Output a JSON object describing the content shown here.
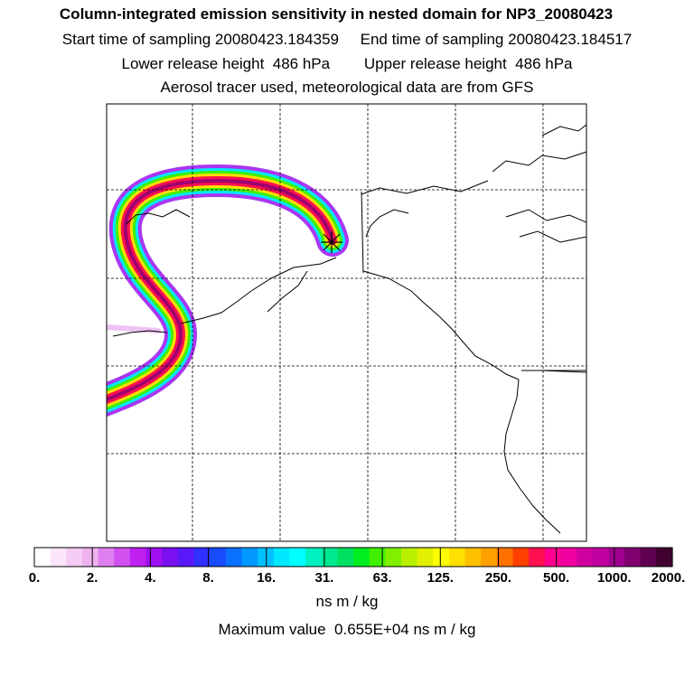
{
  "header": {
    "title": "Column-integrated emission sensitivity in nested domain for NP3_20080423",
    "start_label": "Start time of sampling 20080423.184359",
    "end_label": "End time of sampling 20080423.184517",
    "lower_label": "Lower release height  486 hPa",
    "upper_label": "Upper release height  486 hPa",
    "info": "Aerosol tracer used, meteorological data are from GFS"
  },
  "colorbar": {
    "colors": [
      "#ffffff",
      "#fbe6fb",
      "#f5ccf5",
      "#eeb2ee",
      "#e080f0",
      "#d050f0",
      "#c020f0",
      "#a010f0",
      "#7a10f0",
      "#5a18f8",
      "#3030ff",
      "#1a4cff",
      "#0a70ff",
      "#0098ff",
      "#00c0ff",
      "#00e8ff",
      "#00ffff",
      "#00f0c0",
      "#00e890",
      "#00e060",
      "#00ee20",
      "#40f000",
      "#80f000",
      "#b8f000",
      "#e0f000",
      "#ffff00",
      "#ffe000",
      "#ffc000",
      "#ffa000",
      "#ff7000",
      "#ff4000",
      "#ff1050",
      "#ff0090",
      "#f000a0",
      "#d000a0",
      "#c000a0",
      "#a00090",
      "#800070",
      "#600050",
      "#400030"
    ],
    "tick_labels": [
      "0.",
      "2.",
      "4.",
      "8.",
      "16.",
      "31.",
      "63.",
      "125.",
      "250.",
      "500.",
      "1000.",
      "2000."
    ],
    "units": "ns m / kg",
    "max_value": "Maximum value  0.655E+04 ns m / kg"
  },
  "map": {
    "release_marker": "asterisk-marker",
    "grid": true,
    "plume_colors": {
      "outer": "#a020f0",
      "mid": "#00e8ff",
      "green": "#40f000",
      "yellow": "#ffe000",
      "red": "#ff1050",
      "core": "#a00070"
    }
  }
}
